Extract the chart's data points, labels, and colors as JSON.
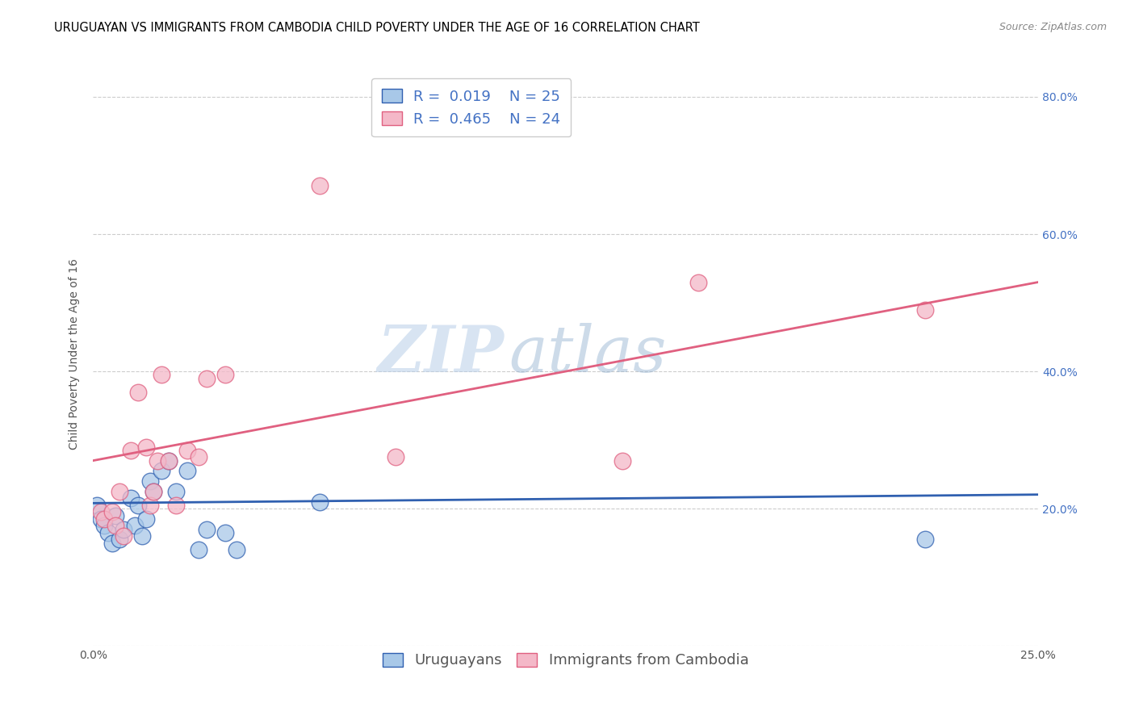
{
  "title": "URUGUAYAN VS IMMIGRANTS FROM CAMBODIA CHILD POVERTY UNDER THE AGE OF 16 CORRELATION CHART",
  "source": "Source: ZipAtlas.com",
  "ylabel": "Child Poverty Under the Age of 16",
  "x_min": 0.0,
  "x_max": 0.25,
  "y_min": 0.0,
  "y_max": 0.85,
  "x_ticks": [
    0.0,
    0.05,
    0.1,
    0.15,
    0.2,
    0.25
  ],
  "x_tick_labels": [
    "0.0%",
    "",
    "",
    "",
    "",
    "25.0%"
  ],
  "y_ticks": [
    0.0,
    0.2,
    0.4,
    0.6,
    0.8
  ],
  "y_tick_labels_right": [
    "",
    "20.0%",
    "40.0%",
    "60.0%",
    "80.0%"
  ],
  "legend_r1": "R =  0.019",
  "legend_n1": "N = 25",
  "legend_r2": "R =  0.465",
  "legend_n2": "N = 24",
  "color_blue": "#a8c8e8",
  "color_pink": "#f4b8c8",
  "color_line_blue": "#3060b0",
  "color_line_pink": "#e06080",
  "watermark_zip": "ZIP",
  "watermark_atlas": "atlas",
  "uruguayan_x": [
    0.001,
    0.002,
    0.003,
    0.004,
    0.005,
    0.006,
    0.007,
    0.008,
    0.01,
    0.011,
    0.012,
    0.013,
    0.014,
    0.015,
    0.016,
    0.018,
    0.02,
    0.022,
    0.025,
    0.028,
    0.03,
    0.035,
    0.038,
    0.06,
    0.22
  ],
  "uruguayan_y": [
    0.205,
    0.185,
    0.175,
    0.165,
    0.15,
    0.19,
    0.155,
    0.17,
    0.215,
    0.175,
    0.205,
    0.16,
    0.185,
    0.24,
    0.225,
    0.255,
    0.27,
    0.225,
    0.255,
    0.14,
    0.17,
    0.165,
    0.14,
    0.21,
    0.155
  ],
  "cambodia_x": [
    0.002,
    0.003,
    0.005,
    0.006,
    0.007,
    0.008,
    0.01,
    0.012,
    0.014,
    0.015,
    0.016,
    0.017,
    0.018,
    0.02,
    0.022,
    0.025,
    0.028,
    0.03,
    0.035,
    0.06,
    0.08,
    0.14,
    0.16,
    0.22
  ],
  "cambodia_y": [
    0.195,
    0.185,
    0.195,
    0.175,
    0.225,
    0.16,
    0.285,
    0.37,
    0.29,
    0.205,
    0.225,
    0.27,
    0.395,
    0.27,
    0.205,
    0.285,
    0.275,
    0.39,
    0.395,
    0.67,
    0.275,
    0.27,
    0.53,
    0.49
  ],
  "title_fontsize": 10.5,
  "source_fontsize": 9,
  "axis_label_fontsize": 10,
  "tick_fontsize": 10,
  "legend_fontsize": 13,
  "blue_line_y_intercept": 0.208,
  "blue_line_slope": 0.05,
  "pink_line_y_intercept": 0.27,
  "pink_line_slope": 1.04
}
